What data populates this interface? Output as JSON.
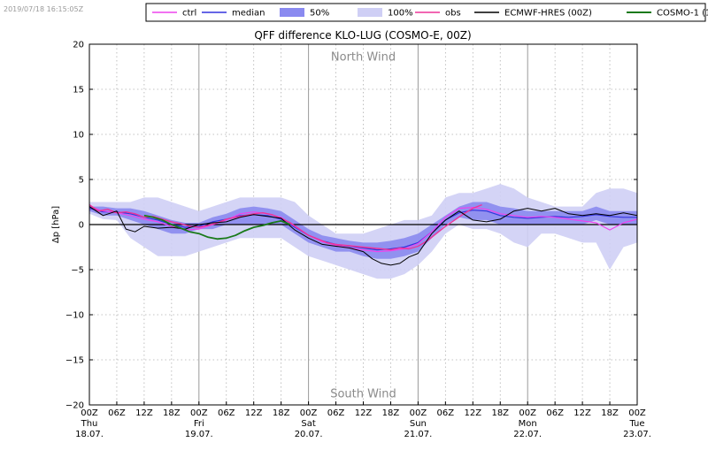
{
  "timestamp": "2019/07/18 16:15:05Z",
  "chart_data": {
    "type": "line",
    "title": "QFF difference KLO-LUG (COSMO-E, 00Z)",
    "ylabel": "Δp [hPa]",
    "xlabel": "",
    "ylim": [
      -20,
      20
    ],
    "xlim": [
      0,
      120
    ],
    "grid": true,
    "legend_position": "top",
    "y_ticks": [
      "20",
      "15",
      "10",
      "5",
      "0",
      "−5",
      "−10",
      "−15",
      "−20"
    ],
    "x_ticks": [
      {
        "h": 0,
        "lines": [
          "00Z",
          "Thu",
          "18.07."
        ]
      },
      {
        "h": 6,
        "lines": [
          "06Z"
        ]
      },
      {
        "h": 12,
        "lines": [
          "12Z"
        ]
      },
      {
        "h": 18,
        "lines": [
          "18Z"
        ]
      },
      {
        "h": 24,
        "lines": [
          "00Z",
          "Fri",
          "19.07."
        ]
      },
      {
        "h": 30,
        "lines": [
          "06Z"
        ]
      },
      {
        "h": 36,
        "lines": [
          "12Z"
        ]
      },
      {
        "h": 42,
        "lines": [
          "18Z"
        ]
      },
      {
        "h": 48,
        "lines": [
          "00Z",
          "Sat",
          "20.07."
        ]
      },
      {
        "h": 54,
        "lines": [
          "06Z"
        ]
      },
      {
        "h": 60,
        "lines": [
          "12Z"
        ]
      },
      {
        "h": 66,
        "lines": [
          "18Z"
        ]
      },
      {
        "h": 72,
        "lines": [
          "00Z",
          "Sun",
          "21.07."
        ]
      },
      {
        "h": 78,
        "lines": [
          "06Z"
        ]
      },
      {
        "h": 84,
        "lines": [
          "12Z"
        ]
      },
      {
        "h": 90,
        "lines": [
          "18Z"
        ]
      },
      {
        "h": 96,
        "lines": [
          "00Z",
          "Mon",
          "22.07."
        ]
      },
      {
        "h": 102,
        "lines": [
          "06Z"
        ]
      },
      {
        "h": 108,
        "lines": [
          "12Z"
        ]
      },
      {
        "h": 114,
        "lines": [
          "18Z"
        ]
      },
      {
        "h": 120,
        "lines": [
          "00Z",
          "Tue",
          "23.07."
        ]
      }
    ],
    "annotations": [
      {
        "text": "North Wind",
        "x": 60,
        "y": 18.7
      },
      {
        "text": "South Wind",
        "x": 60,
        "y": -18.7
      }
    ],
    "colors": {
      "ctrl": "#ee44ee",
      "median": "#3333dd",
      "band50": "#8a8af0",
      "band100": "#cfcff5",
      "obs": "#ee3399",
      "ecmwf": "#000000",
      "cosmo1": "#1a7a1a"
    },
    "legend": [
      {
        "key": "ctrl",
        "label": "ctrl",
        "kind": "line"
      },
      {
        "key": "median",
        "label": "median",
        "kind": "line"
      },
      {
        "key": "band50",
        "label": "50%",
        "kind": "patch"
      },
      {
        "key": "band100",
        "label": "100%",
        "kind": "patch"
      },
      {
        "key": "obs",
        "label": "obs",
        "kind": "line"
      },
      {
        "key": "ecmwf",
        "label": "ECMWF-HRES (00Z)",
        "kind": "line"
      },
      {
        "key": "cosmo1",
        "label": "COSMO-1 (12Z)",
        "kind": "line"
      }
    ],
    "series": [
      {
        "name": "100%",
        "kind": "band",
        "colorKey": "band100",
        "x": [
          0,
          3,
          6,
          9,
          12,
          15,
          18,
          21,
          24,
          27,
          30,
          33,
          36,
          39,
          42,
          45,
          48,
          51,
          54,
          57,
          60,
          63,
          66,
          69,
          72,
          75,
          78,
          81,
          84,
          87,
          90,
          93,
          96,
          99,
          102,
          105,
          108,
          111,
          114,
          117,
          120
        ],
        "lo": [
          1.2,
          0.6,
          0.5,
          -1.5,
          -2.5,
          -3.5,
          -3.5,
          -3.5,
          -3.0,
          -2.5,
          -2.0,
          -1.5,
          -1.5,
          -1.5,
          -1.5,
          -2.5,
          -3.5,
          -4.0,
          -4.5,
          -5.0,
          -5.5,
          -6.0,
          -6.0,
          -5.5,
          -4.5,
          -3.0,
          -1.0,
          0.0,
          -0.5,
          -0.5,
          -1.0,
          -2.0,
          -2.5,
          -1.0,
          -1.0,
          -1.5,
          -2.0,
          -2.0,
          -5.0,
          -2.5,
          -2.0
        ],
        "hi": [
          2.5,
          2.5,
          2.5,
          2.5,
          3.0,
          3.0,
          2.5,
          2.0,
          1.5,
          2.0,
          2.5,
          3.0,
          3.0,
          3.0,
          3.0,
          2.5,
          1.0,
          0.0,
          -1.0,
          -1.0,
          -1.0,
          -0.5,
          0.0,
          0.5,
          0.5,
          1.0,
          3.0,
          3.5,
          3.5,
          4.0,
          4.5,
          4.0,
          3.0,
          2.5,
          2.0,
          2.0,
          2.0,
          3.5,
          4.0,
          4.0,
          3.5
        ]
      },
      {
        "name": "50%",
        "kind": "band",
        "colorKey": "band50",
        "x": [
          0,
          3,
          6,
          9,
          12,
          15,
          18,
          21,
          24,
          27,
          30,
          33,
          36,
          39,
          42,
          45,
          48,
          51,
          54,
          57,
          60,
          63,
          66,
          69,
          72,
          75,
          78,
          81,
          84,
          87,
          90,
          93,
          96,
          99,
          102,
          105,
          108,
          111,
          114,
          117,
          120
        ],
        "lo": [
          1.5,
          1.0,
          1.0,
          0.5,
          0.0,
          -0.5,
          -1.0,
          -1.0,
          -0.5,
          -0.5,
          0.0,
          0.0,
          0.0,
          0.0,
          0.0,
          -1.0,
          -2.0,
          -2.5,
          -3.0,
          -3.0,
          -3.5,
          -3.8,
          -3.8,
          -3.5,
          -3.0,
          -1.5,
          0.0,
          0.8,
          0.5,
          0.5,
          0.0,
          0.0,
          0.0,
          0.0,
          0.0,
          0.0,
          0.0,
          0.5,
          0.0,
          0.0,
          0.0
        ],
        "hi": [
          2.0,
          2.0,
          1.8,
          1.8,
          1.5,
          1.0,
          0.5,
          0.2,
          0.2,
          0.8,
          1.2,
          1.8,
          2.0,
          1.8,
          1.5,
          0.5,
          -0.5,
          -1.2,
          -1.5,
          -1.8,
          -2.0,
          -2.0,
          -1.8,
          -1.5,
          -1.0,
          0.0,
          1.0,
          2.0,
          2.5,
          2.5,
          2.0,
          1.8,
          1.5,
          1.5,
          1.5,
          1.5,
          1.5,
          2.0,
          1.5,
          1.5,
          1.5
        ]
      },
      {
        "name": "median",
        "kind": "line",
        "colorKey": "median",
        "width": 1.2,
        "x": [
          0,
          3,
          6,
          9,
          12,
          15,
          18,
          21,
          24,
          27,
          30,
          33,
          36,
          39,
          42,
          45,
          48,
          51,
          54,
          57,
          60,
          63,
          66,
          69,
          72,
          75,
          78,
          81,
          84,
          87,
          90,
          93,
          96,
          99,
          102,
          105,
          108,
          111,
          114,
          117,
          120
        ],
        "y": [
          1.8,
          1.4,
          1.4,
          1.2,
          0.8,
          0.5,
          0.0,
          -0.3,
          -0.2,
          0.3,
          0.6,
          1.0,
          1.1,
          1.0,
          0.6,
          -0.3,
          -1.2,
          -1.8,
          -2.2,
          -2.4,
          -2.6,
          -2.8,
          -2.7,
          -2.5,
          -2.0,
          -0.8,
          0.5,
          1.3,
          1.6,
          1.5,
          1.0,
          0.8,
          0.7,
          0.8,
          0.9,
          0.8,
          0.9,
          1.1,
          0.9,
          0.8,
          0.8
        ]
      },
      {
        "name": "ctrl",
        "kind": "line",
        "colorKey": "ctrl",
        "width": 1.2,
        "x": [
          0,
          3,
          6,
          9,
          12,
          15,
          18,
          21,
          24,
          27,
          30,
          33,
          36,
          39,
          42,
          45,
          48,
          51,
          54,
          57,
          60,
          63,
          66,
          69,
          72,
          75,
          78,
          81,
          84,
          87,
          90,
          93,
          96,
          99,
          102,
          105,
          108,
          111,
          114,
          117,
          120
        ],
        "y": [
          2.0,
          1.5,
          1.3,
          1.0,
          0.6,
          0.3,
          -0.2,
          -0.6,
          -0.5,
          0.0,
          0.5,
          1.2,
          1.4,
          1.2,
          0.8,
          -0.2,
          -1.2,
          -1.9,
          -2.3,
          -2.6,
          -2.8,
          -3.0,
          -2.9,
          -2.7,
          -2.1,
          -0.8,
          0.8,
          1.8,
          1.9,
          1.7,
          1.2,
          1.0,
          0.8,
          0.9,
          0.8,
          0.6,
          0.4,
          0.2,
          -0.6,
          0.2,
          0.6
        ]
      },
      {
        "name": "obs",
        "kind": "line",
        "colorKey": "obs",
        "width": 1.4,
        "x": [
          0,
          2,
          4,
          6,
          8,
          10,
          12,
          14,
          16,
          18,
          20,
          22,
          24,
          26,
          28,
          30,
          32,
          34,
          36,
          38,
          40,
          42,
          44,
          46,
          48,
          50,
          52,
          54,
          56,
          58,
          60,
          62,
          64,
          66,
          68,
          70,
          72,
          74,
          76,
          78,
          80,
          82,
          84,
          86
        ],
        "y": [
          2.2,
          1.5,
          1.7,
          1.3,
          1.4,
          1.2,
          0.8,
          0.9,
          0.6,
          0.3,
          0.1,
          -0.2,
          -0.3,
          -0.1,
          0.2,
          0.6,
          0.8,
          1.0,
          1.2,
          1.3,
          1.1,
          0.7,
          0.2,
          -0.5,
          -1.2,
          -1.6,
          -2.0,
          -2.2,
          -2.3,
          -2.4,
          -2.5,
          -2.6,
          -2.7,
          -2.8,
          -2.6,
          -2.7,
          -2.4,
          -1.8,
          -1.0,
          -0.2,
          0.5,
          1.2,
          1.8,
          2.2
        ]
      },
      {
        "name": "ECMWF-HRES (00Z)",
        "kind": "line",
        "colorKey": "ecmwf",
        "width": 1.0,
        "x": [
          0,
          3,
          6,
          8,
          10,
          12,
          15,
          18,
          21,
          24,
          27,
          30,
          33,
          36,
          39,
          42,
          45,
          48,
          51,
          54,
          57,
          60,
          62,
          64,
          66,
          68,
          70,
          72,
          75,
          78,
          81,
          84,
          87,
          90,
          93,
          96,
          99,
          102,
          105,
          108,
          111,
          114,
          117,
          120
        ],
        "y": [
          2.0,
          1.0,
          1.5,
          -0.5,
          -0.8,
          -0.2,
          -0.4,
          -0.3,
          -0.5,
          0.0,
          0.2,
          0.3,
          0.8,
          1.1,
          0.9,
          0.7,
          -0.6,
          -1.5,
          -2.2,
          -2.4,
          -2.6,
          -3.0,
          -3.8,
          -4.3,
          -4.5,
          -4.3,
          -3.6,
          -3.2,
          -1.0,
          0.5,
          1.5,
          0.5,
          0.3,
          0.6,
          1.5,
          1.8,
          1.5,
          1.8,
          1.2,
          1.0,
          1.2,
          1.0,
          1.3,
          1.0
        ]
      },
      {
        "name": "COSMO-1 (12Z)",
        "kind": "line",
        "colorKey": "cosmo1",
        "width": 1.8,
        "x": [
          12,
          14,
          16,
          18,
          20,
          22,
          24,
          26,
          28,
          30,
          32,
          34,
          36,
          38,
          40,
          42,
          44
        ],
        "y": [
          1.0,
          0.8,
          0.5,
          0.0,
          -0.4,
          -0.8,
          -1.0,
          -1.4,
          -1.6,
          -1.5,
          -1.2,
          -0.7,
          -0.3,
          -0.1,
          0.2,
          0.4,
          0.0
        ]
      }
    ]
  }
}
